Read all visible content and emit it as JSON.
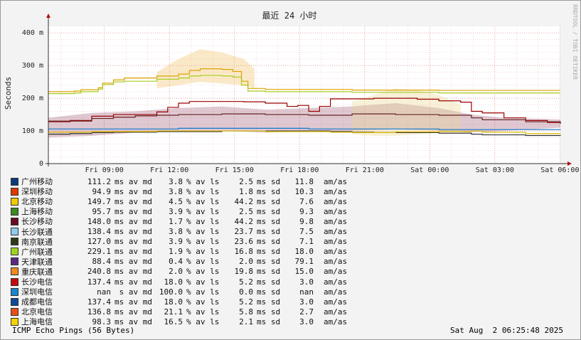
{
  "chart_data": {
    "type": "line",
    "title": "最近 24 小时",
    "ylabel": "Seconds",
    "watermark": "RRDTOOL / TOBI OETIKER",
    "ylim": [
      0,
      420
    ],
    "xlim": [
      0,
      23.6
    ],
    "y_ticks": [
      {
        "value": 0,
        "label": "0"
      },
      {
        "value": 100,
        "label": "100 m"
      },
      {
        "value": 200,
        "label": "200 m"
      },
      {
        "value": 300,
        "label": "300 m"
      },
      {
        "value": 400,
        "label": "400 m"
      }
    ],
    "x_ticks": [
      {
        "value": 2.58,
        "label": "Fri 09:00"
      },
      {
        "value": 5.58,
        "label": "Fri 12:00"
      },
      {
        "value": 8.58,
        "label": "Fri 15:00"
      },
      {
        "value": 11.58,
        "label": "Fri 18:00"
      },
      {
        "value": 14.58,
        "label": "Fri 21:00"
      },
      {
        "value": 17.58,
        "label": "Sat 00:00"
      },
      {
        "value": 20.58,
        "label": "Sat 03:00"
      },
      {
        "value": 23.58,
        "label": "Sat 06:00"
      }
    ],
    "grid": true,
    "smoke_bands": [
      {
        "color": "#8b3a5a",
        "opacity": 0.28,
        "x": [
          0,
          2,
          4,
          6,
          8,
          10,
          12,
          14,
          16,
          18,
          19.5,
          21,
          23.6
        ],
        "low": [
          80,
          85,
          95,
          100,
          100,
          95,
          98,
          100,
          105,
          100,
          95,
          100,
          110
        ],
        "high": [
          140,
          155,
          160,
          170,
          175,
          165,
          170,
          175,
          185,
          170,
          150,
          140,
          135
        ]
      },
      {
        "color": "#f0c060",
        "opacity": 0.35,
        "x": [
          5,
          6,
          7,
          8,
          9,
          9.5
        ],
        "low": [
          230,
          240,
          250,
          245,
          240,
          230
        ],
        "high": [
          280,
          320,
          350,
          340,
          320,
          290
        ]
      },
      {
        "color": "#e8d890",
        "opacity": 0.35,
        "x": [
          14,
          15,
          16,
          17,
          18,
          19
        ],
        "low": [
          90,
          85,
          85,
          90,
          95,
          100
        ],
        "high": [
          190,
          210,
          230,
          225,
          210,
          180
        ]
      }
    ],
    "series": [
      {
        "name": "联通 (229.1 ms)",
        "color": "#d9a400",
        "x": [
          0,
          1.2,
          1.5,
          2.3,
          2.5,
          3,
          3.5,
          4,
          5,
          6,
          6.5,
          7,
          8,
          8.5,
          8.9,
          9.2,
          10,
          14,
          18,
          23.6
        ],
        "y": [
          220,
          222,
          226,
          232,
          246,
          256,
          262,
          262,
          268,
          274,
          285,
          290,
          288,
          282,
          252,
          230,
          227,
          225,
          224,
          224
        ]
      },
      {
        "name": "广州联通",
        "color": "#aacc22",
        "x": [
          0,
          1.2,
          1.5,
          2.3,
          2.5,
          3,
          3.5,
          4,
          5,
          6,
          6.5,
          7,
          8,
          8.5,
          8.9,
          9.2,
          10,
          14,
          18,
          23.6
        ],
        "y": [
          214,
          216,
          220,
          228,
          242,
          250,
          252,
          252,
          258,
          262,
          268,
          270,
          268,
          265,
          240,
          222,
          220,
          218,
          216,
          216
        ]
      },
      {
        "name": "北京移动",
        "color": "#990000",
        "x": [
          0,
          1,
          2,
          3,
          4,
          5,
          5.5,
          6,
          6.5,
          9,
          10,
          11,
          11.5,
          12,
          12.5,
          13,
          14,
          15,
          16,
          17,
          18,
          19,
          19.5,
          20,
          21,
          22,
          23,
          23.6
        ],
        "y": [
          128,
          132,
          145,
          150,
          150,
          158,
          172,
          185,
          190,
          189,
          185,
          175,
          178,
          160,
          175,
          198,
          198,
          200,
          200,
          197,
          192,
          188,
          160,
          155,
          140,
          132,
          126,
          123
        ]
      },
      {
        "name": "长沙联通",
        "color": "#662222",
        "x": [
          0,
          2,
          3,
          4,
          5,
          6,
          8,
          10,
          12,
          14,
          16,
          18,
          19.5,
          20,
          22,
          23.6
        ],
        "y": [
          130,
          138,
          142,
          146,
          148,
          150,
          152,
          150,
          148,
          152,
          150,
          148,
          140,
          134,
          128,
          122
        ]
      },
      {
        "name": "上海移动",
        "color": "#333333",
        "x": [
          0,
          1,
          2,
          3,
          5,
          8,
          10,
          13,
          14,
          15,
          18,
          19.5,
          20,
          22,
          23.6
        ],
        "y": [
          90,
          92,
          95,
          96,
          98,
          100,
          100,
          98,
          96,
          95,
          93,
          90,
          88,
          86,
          85
        ]
      },
      {
        "name": "上海电信",
        "color": "#ddbb00",
        "x": [
          0,
          2,
          5,
          8,
          10,
          13,
          14,
          16,
          18,
          19.5,
          20,
          22,
          23.6
        ],
        "y": [
          96,
          98,
          100,
          100,
          98,
          96,
          95,
          97,
          98,
          100,
          96,
          92,
          90
        ]
      },
      {
        "name": "深圳电信",
        "color": "#1177cc",
        "x": [
          0,
          6,
          12,
          18,
          23.6
        ],
        "y": [
          106,
          108,
          106,
          104,
          103
        ]
      }
    ],
    "legend": [
      {
        "name": "广州移动",
        "color": "#0c3b7a",
        "median": "111.2",
        "med_unit": "ms av md",
        "loss": "3.8",
        "loss_unit": "% av ls",
        "sd": "2.5",
        "sd_unit": "ms sd",
        "ratio": "11.8",
        "ratio_unit": "am/as"
      },
      {
        "name": "深圳移动",
        "color": "#e03800",
        "median": "94.9",
        "med_unit": "ms av md",
        "loss": "3.8",
        "loss_unit": "% av ls",
        "sd": "1.8",
        "sd_unit": "ms sd",
        "ratio": "10.3",
        "ratio_unit": "am/as"
      },
      {
        "name": "北京移动",
        "color": "#f5c800",
        "median": "149.7",
        "med_unit": "ms av md",
        "loss": "4.5",
        "loss_unit": "% av ls",
        "sd": "44.2",
        "sd_unit": "ms sd",
        "ratio": "7.6",
        "ratio_unit": "am/as"
      },
      {
        "name": "上海移动",
        "color": "#3a8a1e",
        "median": "95.7",
        "med_unit": "ms av md",
        "loss": "3.9",
        "loss_unit": "% av ls",
        "sd": "2.5",
        "sd_unit": "ms sd",
        "ratio": "9.3",
        "ratio_unit": "am/as"
      },
      {
        "name": "长沙移动",
        "color": "#6a0a22",
        "median": "148.0",
        "med_unit": "ms av md",
        "loss": "1.7",
        "loss_unit": "% av ls",
        "sd": "44.2",
        "sd_unit": "ms sd",
        "ratio": "9.8",
        "ratio_unit": "am/as"
      },
      {
        "name": "长沙联通",
        "color": "#8ecbf0",
        "median": "138.4",
        "med_unit": "ms av md",
        "loss": "3.8",
        "loss_unit": "% av ls",
        "sd": "23.7",
        "sd_unit": "ms sd",
        "ratio": "7.5",
        "ratio_unit": "am/as"
      },
      {
        "name": "南京联通",
        "color": "#2c3a1a",
        "median": "127.0",
        "med_unit": "ms av md",
        "loss": "3.9",
        "loss_unit": "% av ls",
        "sd": "23.6",
        "sd_unit": "ms sd",
        "ratio": "7.1",
        "ratio_unit": "am/as"
      },
      {
        "name": "广州联通",
        "color": "#9ed41e",
        "median": "229.1",
        "med_unit": "ms av md",
        "loss": "1.9",
        "loss_unit": "% av ls",
        "sd": "16.8",
        "sd_unit": "ms sd",
        "ratio": "18.0",
        "ratio_unit": "am/as"
      },
      {
        "name": "天津联通",
        "color": "#5a2a82",
        "median": "88.4",
        "med_unit": "ms av md",
        "loss": "0.4",
        "loss_unit": "% av ls",
        "sd": "2.0",
        "sd_unit": "ms sd",
        "ratio": "79.1",
        "ratio_unit": "am/as"
      },
      {
        "name": "重庆联通",
        "color": "#f08a1c",
        "median": "240.8",
        "med_unit": "ms av md",
        "loss": "2.0",
        "loss_unit": "% av ls",
        "sd": "19.8",
        "sd_unit": "ms sd",
        "ratio": "15.0",
        "ratio_unit": "am/as"
      },
      {
        "name": "长沙电信",
        "color": "#c40a0a",
        "median": "137.4",
        "med_unit": "ms av md",
        "loss": "18.0",
        "loss_unit": "% av ls",
        "sd": "5.2",
        "sd_unit": "ms sd",
        "ratio": "3.0",
        "ratio_unit": "am/as"
      },
      {
        "name": "深圳电信",
        "color": "#1a86d0",
        "median": "nan",
        "med_unit": " s av md",
        "loss": "100.0",
        "loss_unit": "% av ls",
        "sd": "0.0",
        "sd_unit": "ms sd",
        "ratio": "nan",
        "ratio_unit": "am/as"
      },
      {
        "name": "成都电信",
        "color": "#0e4a9a",
        "median": "137.4",
        "med_unit": "ms av md",
        "loss": "18.0",
        "loss_unit": "% av ls",
        "sd": "5.2",
        "sd_unit": "ms sd",
        "ratio": "3.0",
        "ratio_unit": "am/as"
      },
      {
        "name": "北京电信",
        "color": "#e8501a",
        "median": "136.8",
        "med_unit": "ms av md",
        "loss": "21.1",
        "loss_unit": "% av ls",
        "sd": "5.8",
        "sd_unit": "ms sd",
        "ratio": "2.7",
        "ratio_unit": "am/as"
      },
      {
        "name": "上海电信",
        "color": "#f5d200",
        "median": "98.3",
        "med_unit": "ms av md",
        "loss": "16.5",
        "loss_unit": "% av ls",
        "sd": "2.1",
        "sd_unit": "ms sd",
        "ratio": "3.0",
        "ratio_unit": "am/as"
      }
    ]
  },
  "footer": {
    "left": "ICMP Echo Pings (56 Bytes)",
    "right": "Sat Aug  2 06:25:48 2025"
  }
}
